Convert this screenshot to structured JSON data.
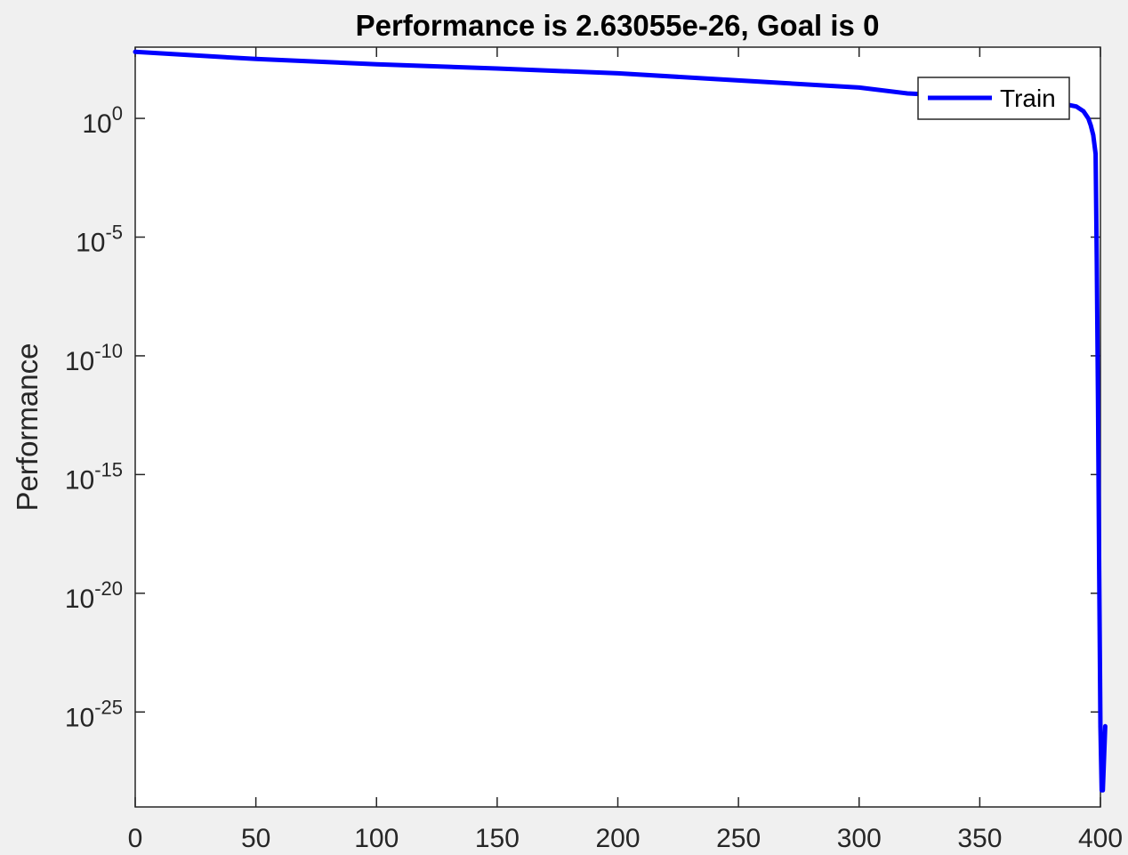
{
  "chart_data": {
    "type": "line",
    "title": "Performance is 2.63055e-26, Goal is 0",
    "xlabel": "",
    "ylabel": "Performance",
    "yscale": "log",
    "xlim": [
      0,
      400
    ],
    "ylim_exp": [
      -29,
      3
    ],
    "x_ticks": [
      "0",
      "50",
      "100",
      "150",
      "200",
      "250",
      "300",
      "350",
      "400"
    ],
    "y_ticks": [
      {
        "base": "10",
        "exp": "0"
      },
      {
        "base": "10",
        "exp": "-5"
      },
      {
        "base": "10",
        "exp": "-10"
      },
      {
        "base": "10",
        "exp": "-15"
      },
      {
        "base": "10",
        "exp": "-20"
      },
      {
        "base": "10",
        "exp": "-25"
      }
    ],
    "grid": false,
    "legend": {
      "position": "top-right",
      "entries": [
        "Train"
      ]
    },
    "series": [
      {
        "name": "Train",
        "color": "#0000ff",
        "x": [
          0,
          50,
          100,
          150,
          200,
          250,
          300,
          320,
          340,
          360,
          380,
          385,
          390,
          393,
          395,
          396,
          397,
          398,
          398.5,
          399,
          399.5,
          400,
          400.5,
          401,
          402
        ],
        "y_log10": [
          2.8,
          2.5,
          2.28,
          2.1,
          1.9,
          1.6,
          1.3,
          1.05,
          0.95,
          0.8,
          0.68,
          0.6,
          0.5,
          0.3,
          0.0,
          -0.3,
          -0.7,
          -1.5,
          -6,
          -12,
          -19,
          -25.6,
          -28.3,
          -28.3,
          -25.6
        ]
      }
    ]
  }
}
